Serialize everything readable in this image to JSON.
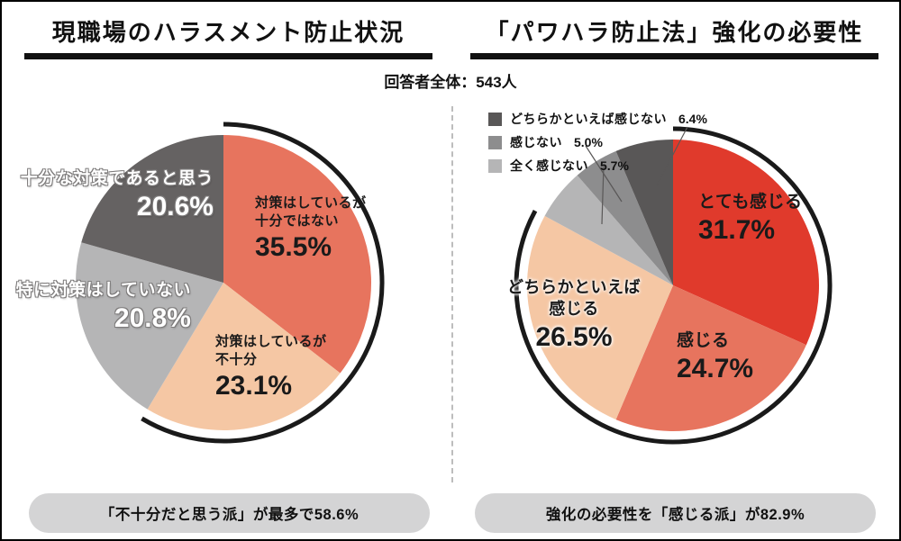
{
  "respondents_total": "回答者全体：543人",
  "chart_data": [
    {
      "type": "pie",
      "title": "現職場のハラスメント防止状況",
      "start_angle_deg": 0,
      "direction": "clockwise",
      "slices": [
        {
          "label": "対策はしているが十分ではない",
          "lines": [
            "対策はしているが",
            "十分ではない"
          ],
          "value": 35.5,
          "display": "35.5%",
          "color": "#e7745e"
        },
        {
          "label": "対策はしているが不十分",
          "lines": [
            "対策はしているが",
            "不十分"
          ],
          "value": 23.1,
          "display": "23.1%",
          "color": "#f5c7a4"
        },
        {
          "label": "特に対策はしていない",
          "lines": [
            "特に対策はしていない"
          ],
          "value": 20.8,
          "display": "20.8%",
          "color": "#b5b5b6"
        },
        {
          "label": "十分な対策であると思う",
          "lines": [
            "十分な対策であると思う"
          ],
          "value": 20.6,
          "display": "20.6%",
          "color": "#656262"
        }
      ],
      "highlight_arc": {
        "from_pct": 0,
        "to_pct": 58.6,
        "color": "#1a1a1a"
      },
      "summary": "「不十分だと思う派」が最多で58.6%"
    },
    {
      "type": "pie",
      "title": "「パワハラ防止法」強化の必要性",
      "start_angle_deg": 0,
      "direction": "clockwise",
      "slices": [
        {
          "label": "とても感じる",
          "lines": [
            "とても感じる"
          ],
          "value": 31.7,
          "display": "31.7%",
          "color": "#e03a2c"
        },
        {
          "label": "感じる",
          "lines": [
            "感じる"
          ],
          "value": 24.7,
          "display": "24.7%",
          "color": "#e7745e"
        },
        {
          "label": "どちらかといえば感じる",
          "lines": [
            "どちらかといえば",
            "感じる"
          ],
          "value": 26.5,
          "display": "26.5%",
          "color": "#f5c7a4"
        },
        {
          "label": "全く感じない",
          "value": 5.7,
          "display": "5.7%",
          "color": "#b5b5b6",
          "in_legend": true
        },
        {
          "label": "感じない",
          "value": 5.0,
          "display": "5.0%",
          "color": "#8d8d8e",
          "in_legend": true
        },
        {
          "label": "どちらかといえば感じない",
          "value": 6.4,
          "display": "6.4%",
          "color": "#595757",
          "in_legend": true
        }
      ],
      "highlight_arc": {
        "from_pct": 0,
        "to_pct": 82.9,
        "color": "#1a1a1a"
      },
      "summary": "強化の必要性を「感じる派」が82.9%"
    }
  ]
}
